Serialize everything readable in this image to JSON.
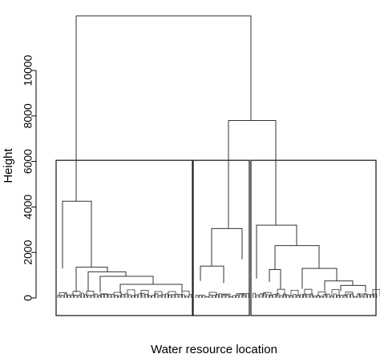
{
  "chart_data": {
    "type": "dendrogram",
    "title": "",
    "xlabel": "Water resource location",
    "ylabel": "Height",
    "ylim": [
      0,
      12000
    ],
    "yticks": [
      0,
      2000,
      4000,
      6000,
      8000,
      10000
    ],
    "merges": [
      {
        "left": [
          95,
          4250
        ],
        "right": [
          313,
          7800
        ],
        "height": 12400
      },
      {
        "left": [
          285,
          3050
        ],
        "right": [
          344,
          3200
        ],
        "height": 7800
      },
      {
        "left": [
          78,
          1300
        ],
        "right": [
          114,
          1350
        ],
        "height": 4250
      },
      {
        "left": [
          264,
          1400
        ],
        "right": [
          302,
          1700
        ],
        "height": 3050
      },
      {
        "left": [
          320,
          850
        ],
        "right": [
          370,
          2300
        ],
        "height": 3200
      },
      {
        "left": [
          343,
          1250
        ],
        "right": [
          398,
          1300
        ],
        "height": 2300
      },
      {
        "left": [
          95,
          250
        ],
        "right": [
          134,
          1150
        ],
        "height": 1350
      },
      {
        "left": [
          110,
          300
        ],
        "right": [
          157,
          950
        ],
        "height": 1150
      },
      {
        "left": [
          125,
          250
        ],
        "right": [
          191,
          600
        ],
        "height": 950
      },
      {
        "left": [
          150,
          200
        ],
        "right": [
          227,
          300
        ],
        "height": 600
      },
      {
        "left": [
          250,
          750
        ],
        "right": [
          279,
          650
        ],
        "height": 1400
      },
      {
        "left": [
          377,
          400
        ],
        "right": [
          420,
          750
        ],
        "height": 1300
      },
      {
        "left": [
          405,
          300
        ],
        "right": [
          440,
          550
        ],
        "height": 750
      },
      {
        "left": [
          425,
          300
        ],
        "right": [
          456,
          250
        ],
        "height": 550
      },
      {
        "left": [
          336,
          700
        ],
        "right": [
          350,
          400
        ],
        "height": 1250
      }
    ],
    "clusters": [
      {
        "x_from": 70,
        "x_to": 240,
        "height": 6050
      },
      {
        "x_from": 241,
        "x_to": 311,
        "height": 6050
      },
      {
        "x_from": 313,
        "x_to": 469,
        "height": 6050
      }
    ]
  }
}
